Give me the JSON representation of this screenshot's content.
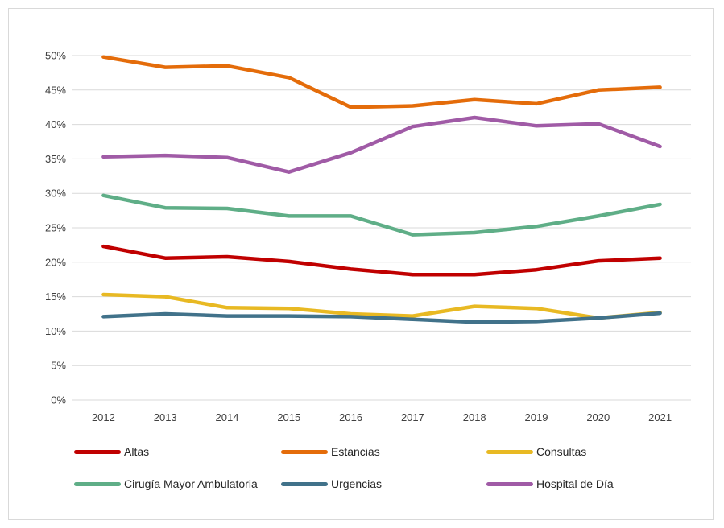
{
  "chart_data": {
    "type": "line",
    "title": "",
    "xlabel": "",
    "ylabel": "",
    "categories": [
      "2012",
      "2013",
      "2014",
      "2015",
      "2016",
      "2017",
      "2018",
      "2019",
      "2020",
      "2021"
    ],
    "y_ticks": [
      "0%",
      "5%",
      "10%",
      "15%",
      "20%",
      "25%",
      "30%",
      "35%",
      "40%",
      "45%",
      "50%"
    ],
    "ylim": [
      0,
      50
    ],
    "grid": "horizontal",
    "legend_position": "bottom",
    "series": [
      {
        "name": "Altas",
        "color": "#c00000",
        "values": [
          22.3,
          20.6,
          20.8,
          20.1,
          19.0,
          18.2,
          18.2,
          18.9,
          20.2,
          20.6
        ]
      },
      {
        "name": "Estancias",
        "color": "#e46c0a",
        "values": [
          49.8,
          48.3,
          48.5,
          46.8,
          42.5,
          42.7,
          43.6,
          43.0,
          45.0,
          45.4
        ]
      },
      {
        "name": "Consultas",
        "color": "#e8b923",
        "values": [
          15.3,
          15.0,
          13.4,
          13.3,
          12.5,
          12.2,
          13.6,
          13.3,
          11.9,
          12.7
        ]
      },
      {
        "name": "Cirugía Mayor Ambulatoria",
        "color": "#5fae87",
        "values": [
          29.7,
          27.9,
          27.8,
          26.7,
          26.7,
          24.0,
          24.3,
          25.2,
          26.7,
          28.4
        ]
      },
      {
        "name": "Urgencias",
        "color": "#41728a",
        "values": [
          12.1,
          12.5,
          12.2,
          12.2,
          12.1,
          11.7,
          11.3,
          11.4,
          11.9,
          12.6
        ]
      },
      {
        "name": "Hospital de Día",
        "color": "#a05ba6",
        "values": [
          35.3,
          35.5,
          35.2,
          33.1,
          35.9,
          39.7,
          41.0,
          39.8,
          40.1,
          36.8
        ]
      }
    ]
  }
}
